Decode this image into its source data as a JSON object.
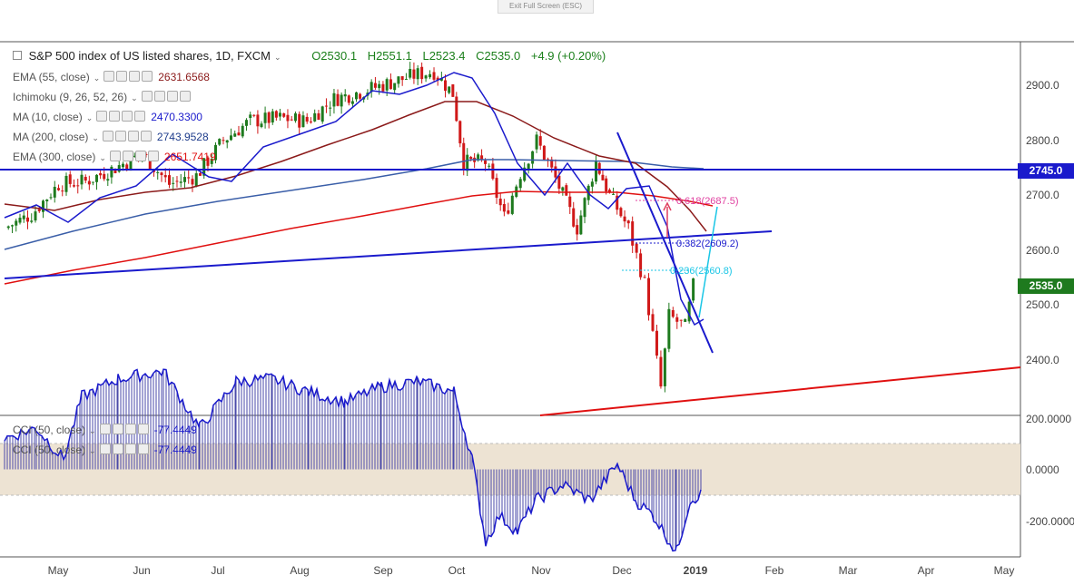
{
  "exit_fullscreen": "Exit Full Screen (ESC)",
  "symbol": {
    "name": "S&P 500 index of US listed shares, 1D, FXCM",
    "open": "O2530.1",
    "high": "H2551.1",
    "low": "L2523.4",
    "close": "C2535.0",
    "change": "+4.9 (+0.20%)"
  },
  "indicators": [
    {
      "label": "EMA (55, close)",
      "value": "2631.6568",
      "color": "#8b1a1a"
    },
    {
      "label": "Ichimoku (9, 26, 52, 26)",
      "value": "",
      "color": "#2962ff"
    },
    {
      "label": "MA (10, close)",
      "value": "2470.3300",
      "color": "#1a1acc"
    },
    {
      "label": "MA (200, close)",
      "value": "2743.9528",
      "color": "#1f3d8c"
    },
    {
      "label": "EMA (300, close)",
      "value": "2651.7419",
      "color": "#e01010"
    }
  ],
  "cci_legends": [
    {
      "label": "CCI (50, close)",
      "value": "-77.4449"
    },
    {
      "label": "CCI (50, close)",
      "value": "-77.4449"
    }
  ],
  "price_tags": [
    {
      "text": "2745.0",
      "color": "#1a1acc",
      "price": 2745
    },
    {
      "text": "2535.0",
      "color": "#1e7a1e",
      "price": 2535
    }
  ],
  "fib_labels": [
    {
      "text": "0.618(2687.5)",
      "color": "#e040a0",
      "price": 2687.5
    },
    {
      "text": "0.382(2609.2)",
      "color": "#1a1acc",
      "price": 2609.2
    },
    {
      "text": "0.236(2560.8)",
      "color": "#1ac6e6",
      "price": 2560.8
    }
  ],
  "chart_data": {
    "type": "candlestick",
    "title": "S&P 500 index of US listed shares, 1D, FXCM",
    "y_axis": {
      "ticks": [
        "2900.0",
        "2800.0",
        "2700.0",
        "2600.0",
        "2500.0",
        "2400.0"
      ],
      "ylim": [
        2245,
        2990
      ]
    },
    "x_axis": {
      "ticks": [
        "May",
        "Jun",
        "Jul",
        "Aug",
        "Sep",
        "Oct",
        "Nov",
        "Dec",
        "2019",
        "Feb",
        "Mar",
        "Apr",
        "May"
      ]
    },
    "close_series": [
      {
        "date": "2018-04-25",
        "close": 2640
      },
      {
        "date": "2018-05-05",
        "close": 2665
      },
      {
        "date": "2018-05-15",
        "close": 2720
      },
      {
        "date": "2018-05-25",
        "close": 2725
      },
      {
        "date": "2018-06-05",
        "close": 2750
      },
      {
        "date": "2018-06-15",
        "close": 2775
      },
      {
        "date": "2018-06-25",
        "close": 2720
      },
      {
        "date": "2018-07-05",
        "close": 2735
      },
      {
        "date": "2018-07-15",
        "close": 2800
      },
      {
        "date": "2018-07-25",
        "close": 2835
      },
      {
        "date": "2018-08-05",
        "close": 2840
      },
      {
        "date": "2018-08-15",
        "close": 2835
      },
      {
        "date": "2018-08-25",
        "close": 2875
      },
      {
        "date": "2018-09-05",
        "close": 2890
      },
      {
        "date": "2018-09-15",
        "close": 2905
      },
      {
        "date": "2018-09-25",
        "close": 2920
      },
      {
        "date": "2018-10-01",
        "close": 2925
      },
      {
        "date": "2018-10-08",
        "close": 2885
      },
      {
        "date": "2018-10-12",
        "close": 2760
      },
      {
        "date": "2018-10-20",
        "close": 2760
      },
      {
        "date": "2018-10-27",
        "close": 2660
      },
      {
        "date": "2018-11-02",
        "close": 2740
      },
      {
        "date": "2018-11-08",
        "close": 2800
      },
      {
        "date": "2018-11-15",
        "close": 2730
      },
      {
        "date": "2018-11-23",
        "close": 2640
      },
      {
        "date": "2018-11-30",
        "close": 2760
      },
      {
        "date": "2018-12-05",
        "close": 2700
      },
      {
        "date": "2018-12-12",
        "close": 2640
      },
      {
        "date": "2018-12-18",
        "close": 2540
      },
      {
        "date": "2018-12-24",
        "close": 2350
      },
      {
        "date": "2018-12-27",
        "close": 2480
      },
      {
        "date": "2019-01-02",
        "close": 2460
      },
      {
        "date": "2019-01-05",
        "close": 2535
      }
    ],
    "levels": {
      "horizontal_resistance": 2745.0,
      "last_close": 2535.0
    },
    "fibonacci": [
      {
        "ratio": 0.618,
        "price": 2687.5
      },
      {
        "ratio": 0.382,
        "price": 2609.2
      },
      {
        "ratio": 0.236,
        "price": 2560.8
      }
    ],
    "cci": {
      "period": 50,
      "value": -77.4449,
      "y_ticks": [
        "200.0000",
        "0.0000",
        "-200.0000"
      ],
      "band": [
        100,
        -100
      ]
    }
  }
}
